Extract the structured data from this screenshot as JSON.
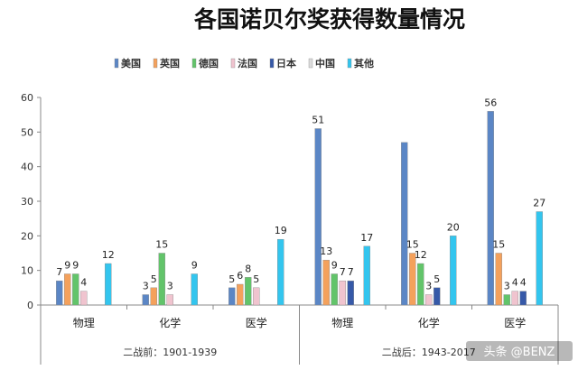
{
  "chart_data": {
    "type": "bar",
    "title": "各国诺贝尔奖获得数量情况",
    "ylim": [
      0,
      60
    ],
    "yticks": [
      0,
      10,
      20,
      30,
      40,
      50,
      60
    ],
    "grid": false,
    "legend_position": "top",
    "categories": [
      "物理",
      "化学",
      "医学",
      "物理",
      "化学",
      "医学"
    ],
    "groups": [
      {
        "label": "二战前：1901-1939",
        "categories": 3
      },
      {
        "label": "二战后：1943-2017",
        "categories": 3
      }
    ],
    "series": [
      {
        "name": "美国",
        "color": "#5b86c5",
        "values": [
          7,
          3,
          5,
          51,
          47,
          56
        ]
      },
      {
        "name": "英国",
        "color": "#f4a15c",
        "values": [
          9,
          5,
          6,
          13,
          15,
          15
        ]
      },
      {
        "name": "德国",
        "color": "#62c46a",
        "values": [
          9,
          15,
          8,
          9,
          12,
          3
        ]
      },
      {
        "name": "法国",
        "color": "#f0c4cf",
        "values": [
          4,
          3,
          5,
          7,
          3,
          4
        ]
      },
      {
        "name": "日本",
        "color": "#3659a8",
        "values": [
          0,
          0,
          0,
          7,
          5,
          4
        ]
      },
      {
        "name": "中国",
        "color": "#dcdcdc",
        "values": [
          0,
          0,
          0,
          0,
          0,
          0
        ]
      },
      {
        "name": "其他",
        "color": "#33c5ee",
        "values": [
          12,
          9,
          19,
          17,
          20,
          27
        ]
      }
    ],
    "visible_labels": [
      [
        true,
        true,
        true,
        true,
        false,
        false,
        true
      ],
      [
        true,
        true,
        true,
        true,
        false,
        false,
        true
      ],
      [
        true,
        true,
        true,
        true,
        false,
        false,
        true
      ],
      [
        true,
        true,
        true,
        true,
        true,
        false,
        true
      ],
      [
        false,
        true,
        true,
        true,
        true,
        false,
        true
      ],
      [
        true,
        true,
        true,
        true,
        true,
        false,
        true
      ]
    ]
  },
  "watermark": "头条 @BENZ"
}
